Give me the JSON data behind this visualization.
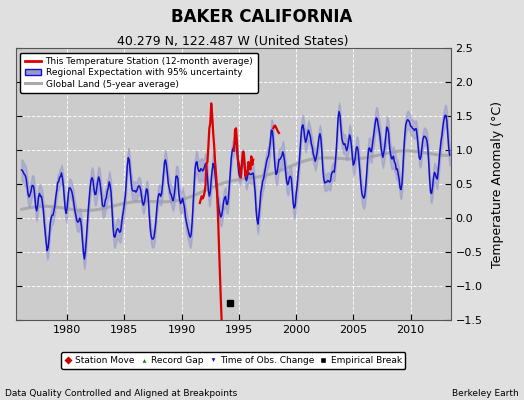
{
  "title": "BAKER CALIFORNIA",
  "subtitle": "40.279 N, 122.487 W (United States)",
  "ylabel": "Temperature Anomaly (°C)",
  "xlabel_left": "Data Quality Controlled and Aligned at Breakpoints",
  "xlabel_right": "Berkeley Earth",
  "ylim": [
    -1.5,
    2.5
  ],
  "xlim": [
    1975.5,
    2013.5
  ],
  "yticks": [
    -1.5,
    -1.0,
    -0.5,
    0.0,
    0.5,
    1.0,
    1.5,
    2.0,
    2.5
  ],
  "xticks": [
    1980,
    1985,
    1990,
    1995,
    2000,
    2005,
    2010
  ],
  "fig_bg_color": "#e0e0e0",
  "plot_bg_color": "#cccccc",
  "red_color": "#dd0000",
  "blue_color": "#1111cc",
  "blue_fill_color": "#aaaadd",
  "gray_color": "#aaaaaa",
  "legend_labels": [
    "This Temperature Station (12-month average)",
    "Regional Expectation with 95% uncertainty",
    "Global Land (5-year average)"
  ],
  "marker_legend": [
    "Station Move",
    "Record Gap",
    "Time of Obs. Change",
    "Empirical Break"
  ],
  "empirical_break_x": 1994.25,
  "title_fontsize": 12,
  "subtitle_fontsize": 9,
  "tick_fontsize": 8,
  "label_fontsize": 8
}
